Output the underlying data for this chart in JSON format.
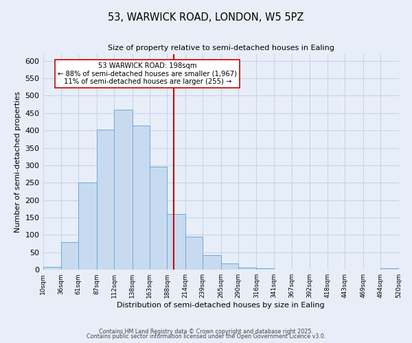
{
  "title": "53, WARWICK ROAD, LONDON, W5 5PZ",
  "subtitle": "Size of property relative to semi-detached houses in Ealing",
  "xlabel": "Distribution of semi-detached houses by size in Ealing",
  "ylabel": "Number of semi-detached properties",
  "bin_edges": [
    10,
    36,
    61,
    87,
    112,
    138,
    163,
    188,
    214,
    239,
    265,
    290,
    316,
    341,
    367,
    392,
    418,
    443,
    469,
    494,
    520
  ],
  "bar_heights": [
    8,
    80,
    250,
    403,
    460,
    415,
    295,
    160,
    95,
    42,
    18,
    6,
    5,
    1,
    1,
    1,
    0,
    0,
    0,
    5
  ],
  "bar_color": "#c8daf0",
  "bar_edge_color": "#6aaad4",
  "vline_x": 198,
  "vline_color": "#cc0000",
  "annotation_title": "53 WARWICK ROAD: 198sqm",
  "annotation_line1": "← 88% of semi-detached houses are smaller (1,967)",
  "annotation_line2": "11% of semi-detached houses are larger (255) →",
  "annotation_box_facecolor": "#ffffff",
  "annotation_box_edgecolor": "#cc0000",
  "grid_color": "#c8d4e8",
  "bg_color": "#e8eef8",
  "ylim": [
    0,
    620
  ],
  "yticks": [
    0,
    50,
    100,
    150,
    200,
    250,
    300,
    350,
    400,
    450,
    500,
    550,
    600
  ],
  "footnote1": "Contains HM Land Registry data © Crown copyright and database right 2025.",
  "footnote2": "Contains public sector information licensed under the Open Government Licence v3.0."
}
